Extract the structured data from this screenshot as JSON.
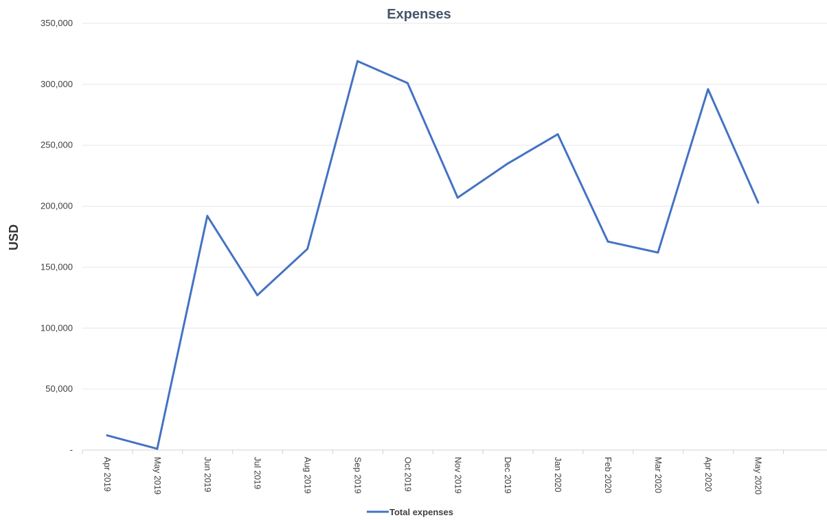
{
  "chart_data": {
    "type": "line",
    "title": "Expenses",
    "xlabel": "",
    "ylabel": "USD",
    "categories": [
      "Apr 2019",
      "May 2019",
      "Jun 2019",
      "Jul 2019",
      "Aug 2019",
      "Sep 2019",
      "Oct 2019",
      "Nov 2019",
      "Dec 2019",
      "Jan 2020",
      "Feb 2020",
      "Mar 2020",
      "Apr 2020",
      "May 2020"
    ],
    "series": [
      {
        "name": "Total expenses",
        "color": "#4472c4",
        "values": [
          12000,
          1000,
          192000,
          127000,
          165000,
          319000,
          301000,
          207000,
          235000,
          259000,
          171000,
          162000,
          296000,
          203000
        ]
      }
    ],
    "ylim": [
      0,
      350000
    ],
    "yticks": [
      0,
      50000,
      100000,
      150000,
      200000,
      250000,
      300000,
      350000
    ],
    "ytick_labels": [
      "-",
      "50,000",
      "100,000",
      "150,000",
      "200,000",
      "250,000",
      "300,000",
      "350,000"
    ],
    "grid": true,
    "legend": "bottom"
  }
}
